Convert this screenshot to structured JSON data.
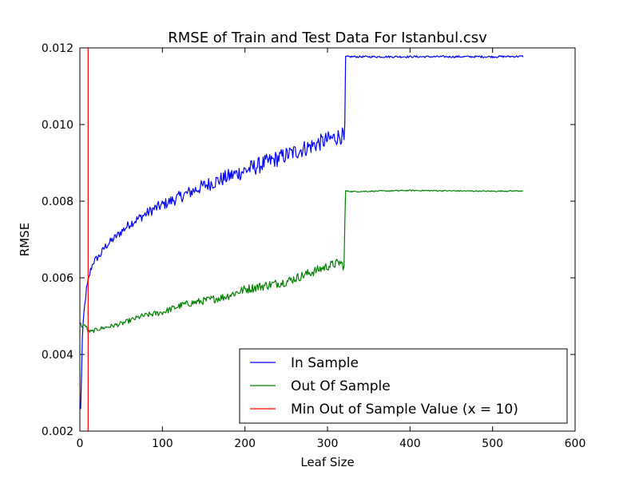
{
  "chart_data": {
    "type": "line",
    "title": "RMSE of Train and Test Data For Istanbul.csv",
    "xlabel": "Leaf Size",
    "ylabel": "RMSE",
    "xlim": [
      0,
      600
    ],
    "ylim": [
      0.002,
      0.012
    ],
    "xticks": [
      {
        "value": 0,
        "label": "0"
      },
      {
        "value": 100,
        "label": "100"
      },
      {
        "value": 200,
        "label": "200"
      },
      {
        "value": 300,
        "label": "300"
      },
      {
        "value": 400,
        "label": "400"
      },
      {
        "value": 500,
        "label": "500"
      },
      {
        "value": 600,
        "label": "600"
      }
    ],
    "yticks": [
      {
        "value": 0.002,
        "label": "0.002"
      },
      {
        "value": 0.004,
        "label": "0.004"
      },
      {
        "value": 0.006,
        "label": "0.006"
      },
      {
        "value": 0.008,
        "label": "0.008"
      },
      {
        "value": 0.01,
        "label": "0.010"
      },
      {
        "value": 0.012,
        "label": "0.012"
      }
    ],
    "grid": false,
    "legend_position": "lower-right",
    "series": [
      {
        "name": "In Sample",
        "color": "#0000ff",
        "x": [
          1,
          3,
          5,
          8,
          10,
          13,
          16,
          20,
          25,
          30,
          40,
          50,
          60,
          75,
          90,
          110,
          130,
          150,
          175,
          200,
          225,
          250,
          275,
          300,
          315,
          319,
          320,
          321,
          322,
          330,
          400,
          500,
          537
        ],
        "y": [
          0.00255,
          0.0044,
          0.0051,
          0.0057,
          0.0059,
          0.0062,
          0.0064,
          0.0065,
          0.0066,
          0.0068,
          0.007,
          0.0072,
          0.0074,
          0.0076,
          0.0078,
          0.008,
          0.0082,
          0.0084,
          0.0086,
          0.0088,
          0.009,
          0.0092,
          0.0094,
          0.0096,
          0.0097,
          0.0097,
          0.0096,
          0.01,
          0.01177,
          0.01177,
          0.01177,
          0.01177,
          0.01178
        ],
        "noise": 0.00022
      },
      {
        "name": "Out Of Sample",
        "color": "#008000",
        "x": [
          1,
          3,
          5,
          8,
          10,
          15,
          20,
          30,
          50,
          75,
          100,
          125,
          150,
          175,
          200,
          225,
          250,
          275,
          300,
          315,
          320,
          321,
          322,
          330,
          400,
          500,
          537
        ],
        "y": [
          0.0048,
          0.0047,
          0.0048,
          0.0047,
          0.0046,
          0.0046,
          0.00465,
          0.0047,
          0.0048,
          0.005,
          0.0051,
          0.0053,
          0.0054,
          0.0055,
          0.0057,
          0.0058,
          0.0059,
          0.0061,
          0.0063,
          0.0064,
          0.0063,
          0.0074,
          0.00827,
          0.00825,
          0.00828,
          0.00826,
          0.00827
        ],
        "noise": 0.00012
      },
      {
        "name": "Min Out of Sample Value (x = 10)",
        "color": "#ff0000",
        "x": [
          10,
          10
        ],
        "y": [
          0.002,
          0.012
        ],
        "noise": 0
      }
    ]
  }
}
